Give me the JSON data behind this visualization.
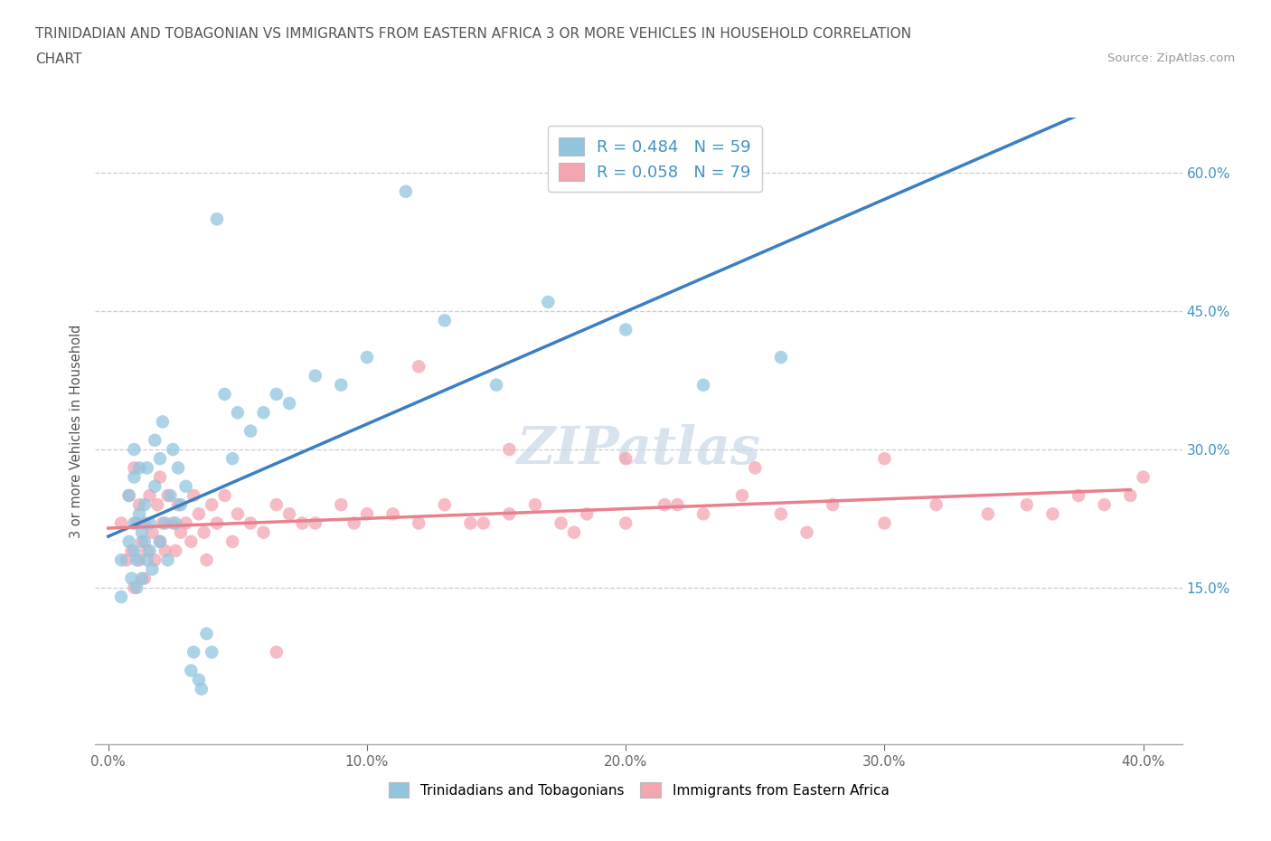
{
  "title_line1": "TRINIDADIAN AND TOBAGONIAN VS IMMIGRANTS FROM EASTERN AFRICA 3 OR MORE VEHICLES IN HOUSEHOLD CORRELATION",
  "title_line2": "CHART",
  "source_text": "Source: ZipAtlas.com",
  "ylabel": "3 or more Vehicles in Household",
  "xlim": [
    -0.005,
    0.415
  ],
  "ylim": [
    -0.02,
    0.66
  ],
  "xtick_labels": [
    "0.0%",
    "10.0%",
    "20.0%",
    "30.0%",
    "40.0%"
  ],
  "xtick_values": [
    0.0,
    0.1,
    0.2,
    0.3,
    0.4
  ],
  "ytick_labels": [
    "15.0%",
    "30.0%",
    "45.0%",
    "60.0%"
  ],
  "ytick_values": [
    0.15,
    0.3,
    0.45,
    0.6
  ],
  "blue_color": "#92c5de",
  "pink_color": "#f4a5b2",
  "blue_line_color": "#3a7fc1",
  "pink_line_color": "#e8808e",
  "R_blue": 0.484,
  "N_blue": 59,
  "R_pink": 0.058,
  "N_pink": 79,
  "legend_label_blue": "Trinidadians and Tobagonians",
  "legend_label_pink": "Immigrants from Eastern Africa",
  "watermark": "ZIPatlas",
  "blue_scatter_x": [
    0.005,
    0.005,
    0.008,
    0.008,
    0.009,
    0.01,
    0.01,
    0.01,
    0.01,
    0.011,
    0.011,
    0.012,
    0.012,
    0.013,
    0.013,
    0.014,
    0.014,
    0.015,
    0.015,
    0.016,
    0.016,
    0.017,
    0.018,
    0.018,
    0.02,
    0.02,
    0.021,
    0.022,
    0.023,
    0.024,
    0.025,
    0.026,
    0.027,
    0.028,
    0.03,
    0.032,
    0.033,
    0.035,
    0.036,
    0.038,
    0.04,
    0.042,
    0.045,
    0.048,
    0.05,
    0.055,
    0.06,
    0.065,
    0.07,
    0.08,
    0.09,
    0.1,
    0.115,
    0.13,
    0.15,
    0.17,
    0.2,
    0.23,
    0.26
  ],
  "blue_scatter_y": [
    0.18,
    0.14,
    0.2,
    0.25,
    0.16,
    0.19,
    0.22,
    0.27,
    0.3,
    0.15,
    0.18,
    0.23,
    0.28,
    0.16,
    0.21,
    0.2,
    0.24,
    0.18,
    0.28,
    0.19,
    0.22,
    0.17,
    0.26,
    0.31,
    0.2,
    0.29,
    0.33,
    0.22,
    0.18,
    0.25,
    0.3,
    0.22,
    0.28,
    0.24,
    0.26,
    0.06,
    0.08,
    0.05,
    0.04,
    0.1,
    0.08,
    0.55,
    0.36,
    0.29,
    0.34,
    0.32,
    0.34,
    0.36,
    0.35,
    0.38,
    0.37,
    0.4,
    0.58,
    0.44,
    0.37,
    0.46,
    0.43,
    0.37,
    0.4
  ],
  "pink_scatter_x": [
    0.005,
    0.007,
    0.008,
    0.009,
    0.01,
    0.01,
    0.011,
    0.012,
    0.012,
    0.013,
    0.014,
    0.014,
    0.015,
    0.016,
    0.017,
    0.018,
    0.019,
    0.02,
    0.02,
    0.021,
    0.022,
    0.023,
    0.025,
    0.026,
    0.027,
    0.028,
    0.03,
    0.032,
    0.033,
    0.035,
    0.037,
    0.038,
    0.04,
    0.042,
    0.045,
    0.048,
    0.05,
    0.055,
    0.06,
    0.065,
    0.07,
    0.075,
    0.08,
    0.09,
    0.1,
    0.11,
    0.12,
    0.13,
    0.145,
    0.155,
    0.165,
    0.175,
    0.185,
    0.2,
    0.215,
    0.23,
    0.245,
    0.26,
    0.28,
    0.3,
    0.32,
    0.34,
    0.355,
    0.365,
    0.375,
    0.385,
    0.395,
    0.4,
    0.12,
    0.155,
    0.2,
    0.25,
    0.3,
    0.18,
    0.22,
    0.27,
    0.14,
    0.095,
    0.065
  ],
  "pink_scatter_y": [
    0.22,
    0.18,
    0.25,
    0.19,
    0.15,
    0.28,
    0.22,
    0.18,
    0.24,
    0.2,
    0.16,
    0.22,
    0.19,
    0.25,
    0.21,
    0.18,
    0.24,
    0.2,
    0.27,
    0.22,
    0.19,
    0.25,
    0.22,
    0.19,
    0.24,
    0.21,
    0.22,
    0.2,
    0.25,
    0.23,
    0.21,
    0.18,
    0.24,
    0.22,
    0.25,
    0.2,
    0.23,
    0.22,
    0.21,
    0.24,
    0.23,
    0.22,
    0.22,
    0.24,
    0.23,
    0.23,
    0.22,
    0.24,
    0.22,
    0.23,
    0.24,
    0.22,
    0.23,
    0.22,
    0.24,
    0.23,
    0.25,
    0.23,
    0.24,
    0.22,
    0.24,
    0.23,
    0.24,
    0.23,
    0.25,
    0.24,
    0.25,
    0.27,
    0.39,
    0.3,
    0.29,
    0.28,
    0.29,
    0.21,
    0.24,
    0.21,
    0.22,
    0.22,
    0.08
  ]
}
